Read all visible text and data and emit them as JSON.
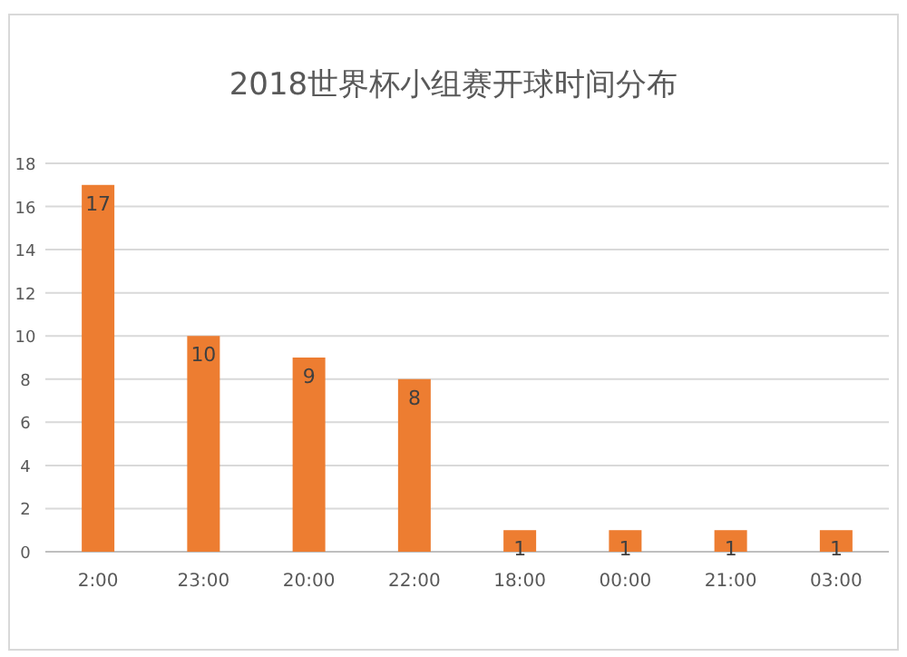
{
  "chart_data": {
    "type": "bar",
    "title": "2018世界杯小组赛开球时间分布",
    "categories": [
      "2:00",
      "23:00",
      "20:00",
      "22:00",
      "18:00",
      "00:00",
      "21:00",
      "03:00"
    ],
    "values": [
      17,
      10,
      9,
      8,
      1,
      1,
      1,
      1
    ],
    "color": "#ed7d31",
    "ylim": [
      0,
      18
    ],
    "yticks": [
      0,
      2,
      4,
      6,
      8,
      10,
      12,
      14,
      16,
      18
    ],
    "grid": "y",
    "data_labels": true
  }
}
